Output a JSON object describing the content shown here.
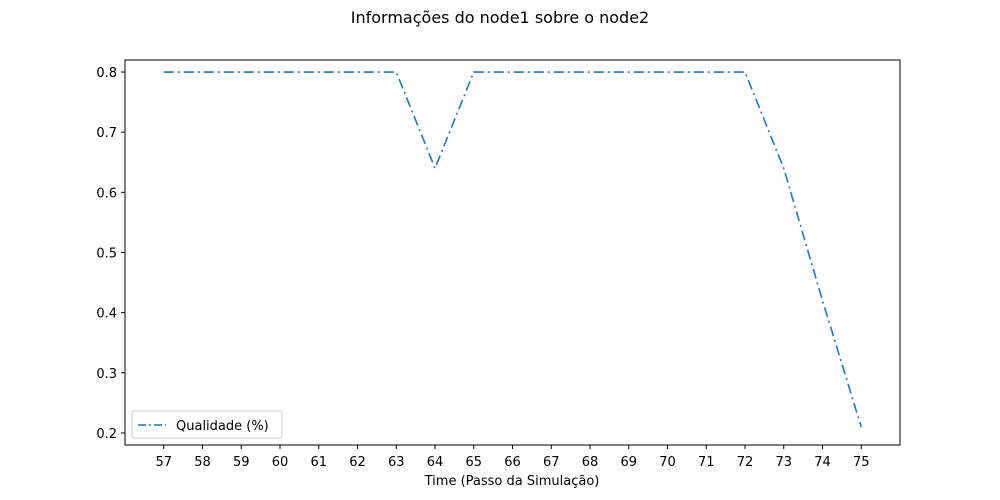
{
  "chart_data": {
    "type": "line",
    "title": "Informações do node1 sobre o node2",
    "xlabel": "Time (Passo da Simulação)",
    "ylabel": "",
    "x": [
      57,
      58,
      59,
      60,
      61,
      62,
      63,
      64,
      65,
      66,
      67,
      68,
      69,
      70,
      71,
      72,
      73,
      74,
      75
    ],
    "xlim": [
      56,
      76
    ],
    "ylim": [
      0.18,
      0.82
    ],
    "xticks": [
      57,
      58,
      59,
      60,
      61,
      62,
      63,
      64,
      65,
      66,
      67,
      68,
      69,
      70,
      71,
      72,
      73,
      74,
      75
    ],
    "yticks": [
      "0.2",
      "0.3",
      "0.4",
      "0.5",
      "0.6",
      "0.7",
      "0.8"
    ],
    "grid": false,
    "legend_position": "lower-left",
    "series": [
      {
        "name": "Qualidade (%)",
        "color": "#1f77b4",
        "linestyle": "dash-dot",
        "values": [
          0.8,
          0.8,
          0.8,
          0.8,
          0.8,
          0.8,
          0.8,
          0.64,
          0.8,
          0.8,
          0.8,
          0.8,
          0.8,
          0.8,
          0.8,
          0.8,
          0.64,
          0.42,
          0.21
        ]
      }
    ]
  }
}
